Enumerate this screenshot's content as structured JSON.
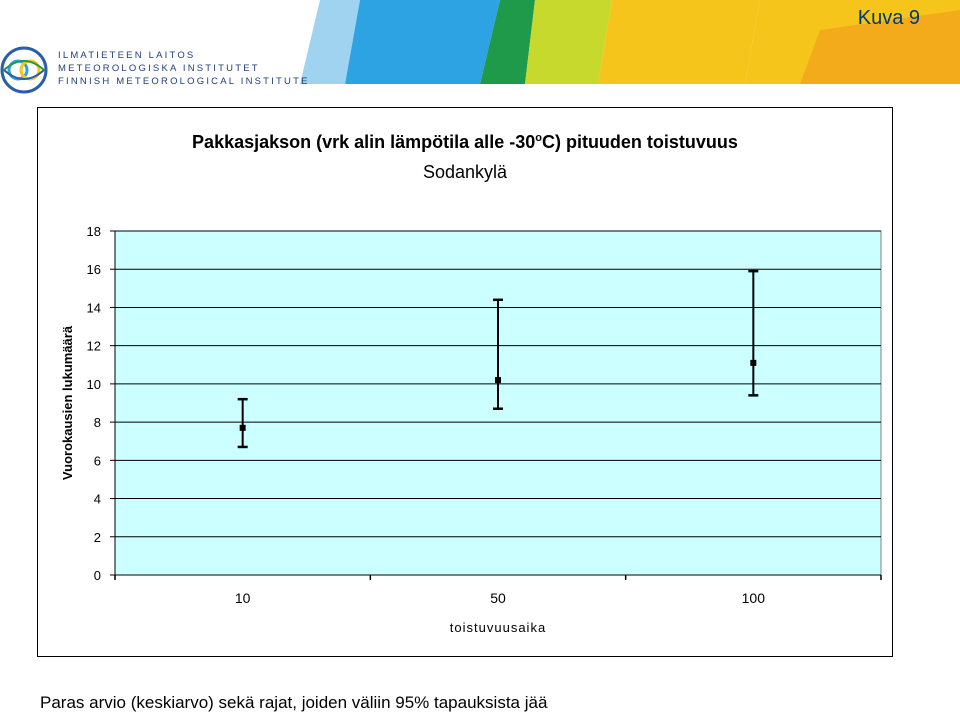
{
  "header": {
    "slide_label": "Kuva 9",
    "logo_lines": [
      "ILMATIETEEN LAITOS",
      "METEOROLOGISKA INSTITUTET",
      "FINNISH METEOROLOGICAL INSTITUTE"
    ],
    "banner_colors": [
      "#9fd3ef",
      "#2ea3e3",
      "#1f9a4a",
      "#c8d92e",
      "#f6c51b",
      "#f39a1d"
    ]
  },
  "chart_data": {
    "type": "scatter",
    "title": "Pakkasjakson (vrk alin lämpötila alle -30",
    "title_sup": "o",
    "title_end": "C) pituuden toistuvuus",
    "subtitle": "Sodankylä",
    "xlabel": "toistuvuusaika",
    "ylabel": "Vuorokausien lukumäärä",
    "categories": [
      "10",
      "50",
      "100"
    ],
    "yticks": [
      "0",
      "2",
      "4",
      "6",
      "8",
      "10",
      "12",
      "14",
      "16",
      "18"
    ],
    "ylim": [
      0,
      18
    ],
    "grid": true,
    "plot_background": "#ccffff",
    "points": [
      {
        "x": "10",
        "estimate": 7.7,
        "lower": 6.7,
        "upper": 9.2
      },
      {
        "x": "50",
        "estimate": 10.2,
        "lower": 8.7,
        "upper": 14.4
      },
      {
        "x": "100",
        "estimate": 11.1,
        "lower": 9.4,
        "upper": 15.9
      }
    ]
  },
  "caption": "Paras arvio (keskiarvo)  sekä rajat, joiden väliin 95% tapauksista jää"
}
